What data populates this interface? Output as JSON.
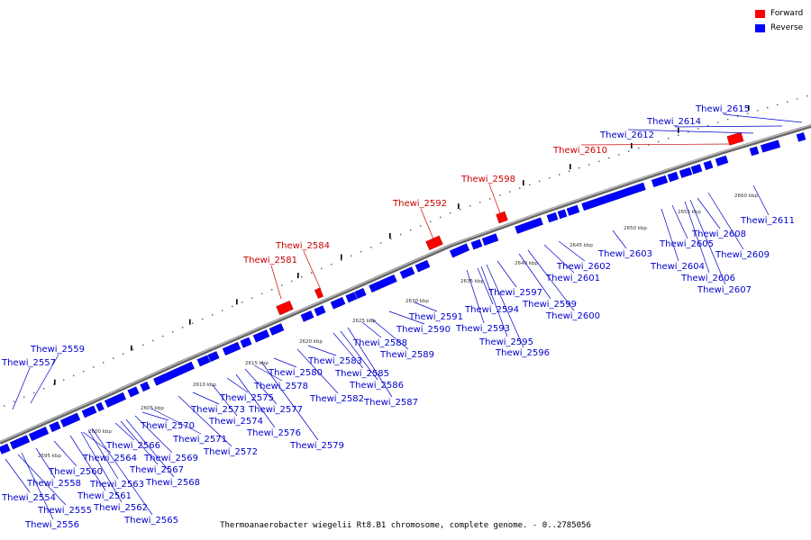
{
  "legend": {
    "forward_label": "Forward",
    "reverse_label": "Reverse",
    "forward_color": "#ff0000",
    "reverse_color": "#0000ff"
  },
  "caption": "Thermoanaerobacter wiegelii Rt8.B1 chromosome, complete genome. - 0..2785056",
  "ticks": [
    "2595 kbp",
    "2600 kbp",
    "2605 kbp",
    "2610 kbp",
    "2615 kbp",
    "2620 kbp",
    "2625 kbp",
    "2630 kbp",
    "2635 kbp",
    "2640 kbp",
    "2645 kbp",
    "2650 kbp",
    "2655 kbp",
    "2660 kbp"
  ],
  "forward_genes": [
    "Thewi_2581",
    "Thewi_2584",
    "Thewi_2592",
    "Thewi_2598",
    "Thewi_2610"
  ],
  "reverse_genes": [
    "Thewi_2554",
    "Thewi_2555",
    "Thewi_2556",
    "Thewi_2557",
    "Thewi_2558",
    "Thewi_2559",
    "Thewi_2560",
    "Thewi_2561",
    "Thewi_2562",
    "Thewi_2563",
    "Thewi_2564",
    "Thewi_2565",
    "Thewi_2566",
    "Thewi_2567",
    "Thewi_2568",
    "Thewi_2569",
    "Thewi_2570",
    "Thewi_2571",
    "Thewi_2572",
    "Thewi_2573",
    "Thewi_2574",
    "Thewi_2575",
    "Thewi_2576",
    "Thewi_2577",
    "Thewi_2578",
    "Thewi_2579",
    "Thewi_2580",
    "Thewi_2582",
    "Thewi_2583",
    "Thewi_2585",
    "Thewi_2586",
    "Thewi_2587",
    "Thewi_2588",
    "Thewi_2589",
    "Thewi_2590",
    "Thewi_2591",
    "Thewi_2593",
    "Thewi_2594",
    "Thewi_2595",
    "Thewi_2596",
    "Thewi_2597",
    "Thewi_2599",
    "Thewi_2600",
    "Thewi_2601",
    "Thewi_2602",
    "Thewi_2603",
    "Thewi_2604",
    "Thewi_2605",
    "Thewi_2606",
    "Thewi_2607",
    "Thewi_2608",
    "Thewi_2609",
    "Thewi_2611",
    "Thewi_2612",
    "Thewi_2614",
    "Thewi_2615"
  ]
}
